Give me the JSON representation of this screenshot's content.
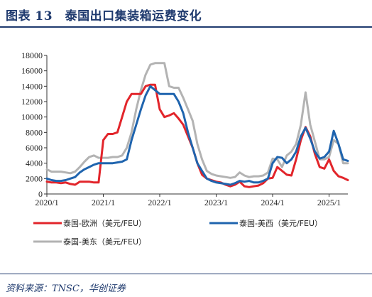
{
  "title": "图表 13　泰国出口集装箱运费变化",
  "source": "资料来源：TNSC，华创证券",
  "colors": {
    "eu": "#e2252b",
    "uswest": "#1f64ae",
    "useast": "#b3b3b3",
    "brand": "#1f3a6e"
  },
  "chart_data": {
    "type": "line",
    "x": [
      "2020/1",
      "2020/2",
      "2020/3",
      "2020/4",
      "2020/5",
      "2020/6",
      "2020/7",
      "2020/8",
      "2020/9",
      "2020/10",
      "2020/11",
      "2020/12",
      "2021/1",
      "2021/2",
      "2021/3",
      "2021/4",
      "2021/5",
      "2021/6",
      "2021/7",
      "2021/8",
      "2021/9",
      "2021/10",
      "2021/11",
      "2021/12",
      "2022/1",
      "2022/2",
      "2022/3",
      "2022/4",
      "2022/5",
      "2022/6",
      "2022/7",
      "2022/8",
      "2022/9",
      "2022/10",
      "2022/11",
      "2022/12",
      "2023/1",
      "2023/2",
      "2023/3",
      "2023/4",
      "2023/5",
      "2023/6",
      "2023/7",
      "2023/8",
      "2023/9",
      "2023/10",
      "2023/11",
      "2023/12",
      "2024/1",
      "2024/2",
      "2024/3",
      "2024/4",
      "2024/5",
      "2024/6",
      "2024/7",
      "2024/8",
      "2024/9",
      "2024/10",
      "2024/11",
      "2024/12",
      "2025/1",
      "2025/2",
      "2025/3",
      "2025/4",
      "2025/5"
    ],
    "xticks": [
      "2020/1",
      "2021/1",
      "2022/1",
      "2023/1",
      "2024/1",
      "2025/1"
    ],
    "ylim": [
      0,
      18000
    ],
    "yticks": [
      0,
      2000,
      4000,
      6000,
      8000,
      10000,
      12000,
      14000,
      16000,
      18000
    ],
    "ytick_labels": [
      "0",
      "2000",
      "4000",
      "6000",
      "8000",
      "10000",
      "12000",
      "14000",
      "16000",
      "18000"
    ],
    "series": [
      {
        "name": "泰国-欧洲（美元/FEU）",
        "color": "#e2252b",
        "values": [
          1600,
          1500,
          1500,
          1400,
          1500,
          1300,
          1200,
          1600,
          1600,
          1600,
          1500,
          1500,
          7000,
          7800,
          7800,
          8000,
          10000,
          12000,
          13000,
          13000,
          13000,
          14000,
          14200,
          14200,
          11000,
          10000,
          10200,
          10500,
          9800,
          9000,
          7500,
          6000,
          4000,
          2500,
          2000,
          1800,
          1600,
          1500,
          1200,
          1000,
          1200,
          1600,
          1000,
          900,
          1000,
          1100,
          1400,
          2000,
          2100,
          3500,
          3000,
          2500,
          2400,
          4500,
          7000,
          8700,
          7500,
          5200,
          3500,
          3300,
          4500,
          3000,
          2300,
          2100,
          1800
        ]
      },
      {
        "name": "泰国-美西（美元/FEU）",
        "color": "#1f64ae",
        "values": [
          2000,
          1800,
          1700,
          1700,
          1800,
          2000,
          2200,
          2800,
          3200,
          3500,
          3800,
          4000,
          4000,
          4000,
          4000,
          4100,
          4200,
          4500,
          7000,
          9000,
          11000,
          12800,
          14000,
          13500,
          13000,
          13000,
          13000,
          13000,
          12000,
          10500,
          8000,
          6000,
          4000,
          3000,
          2000,
          1700,
          1500,
          1400,
          1300,
          1200,
          1400,
          1700,
          1600,
          1700,
          1500,
          1500,
          1700,
          2000,
          4000,
          4800,
          4700,
          4000,
          4500,
          5500,
          7500,
          8600,
          7200,
          5500,
          4600,
          4800,
          5500,
          8200,
          6500,
          4500,
          4300
        ]
      },
      {
        "name": "泰国-美东（美元/FEU）",
        "color": "#b3b3b3",
        "values": [
          3200,
          2900,
          2900,
          2900,
          2800,
          2700,
          2900,
          3500,
          4200,
          4800,
          5000,
          4700,
          4700,
          4700,
          4800,
          4800,
          5000,
          6000,
          8000,
          11000,
          13500,
          15500,
          16800,
          17000,
          17000,
          17000,
          14000,
          13800,
          13800,
          12500,
          11000,
          9500,
          6500,
          4500,
          3000,
          2600,
          2400,
          2300,
          2200,
          2100,
          2200,
          2800,
          2400,
          2200,
          2300,
          2300,
          2400,
          2800,
          4600,
          4500,
          3500,
          5000,
          5500,
          6500,
          9000,
          13200,
          9000,
          6800,
          4500,
          4500,
          4800,
          7000,
          6500,
          4000,
          4000
        ]
      }
    ]
  }
}
